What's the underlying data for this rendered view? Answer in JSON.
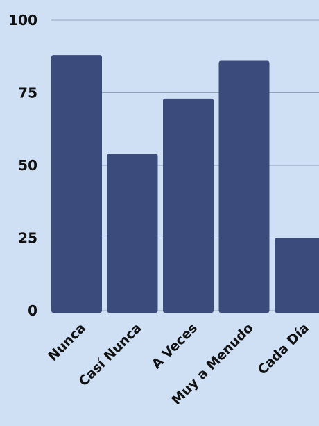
{
  "chart_data": {
    "type": "bar",
    "categories": [
      "Nunca",
      "Casí Nunca",
      "A Veces",
      "Muy a Menudo",
      "Cada Día"
    ],
    "values": [
      88,
      54,
      73,
      86,
      25
    ],
    "ylim": [
      0,
      100
    ],
    "yticks": [
      0,
      25,
      50,
      75,
      100
    ],
    "title": "",
    "xlabel": "",
    "ylabel": "",
    "grid": true,
    "colors": {
      "background": "#cfe0f4",
      "bar": "#3b4b7b",
      "grid": "#8fa3bd",
      "text": "#111111"
    }
  }
}
